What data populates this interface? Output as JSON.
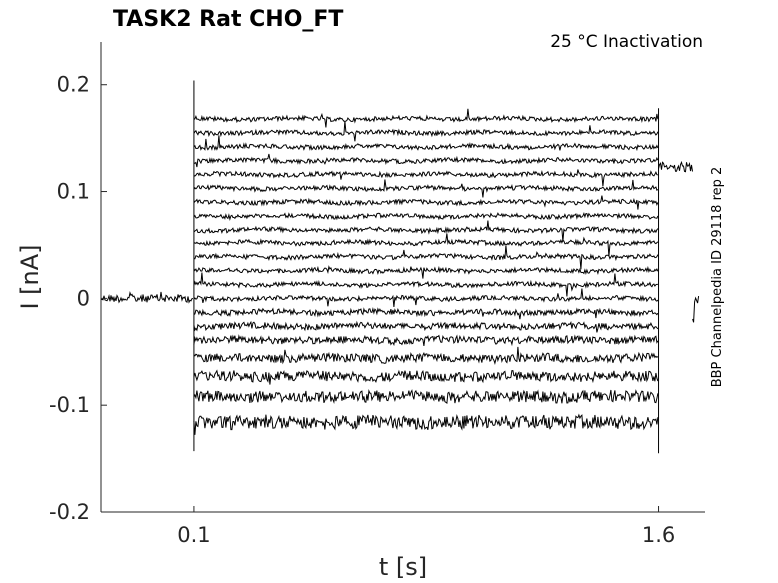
{
  "chart_data": {
    "type": "line",
    "title": "TASK2  Rat  CHO_FT",
    "annotation": "25 °C  Inactivation",
    "side_label": "BBP Channelpedia ID 29118 rep 2",
    "xlabel": "t [s]",
    "ylabel": "I [nA]",
    "xlim": [
      -0.2,
      1.75
    ],
    "ylim": [
      -0.2,
      0.24
    ],
    "xticks": [
      0.1,
      1.6
    ],
    "xtick_labels": [
      "0.1",
      "1.6"
    ],
    "yticks": [
      -0.2,
      -0.1,
      0,
      0.1,
      0.2
    ],
    "ytick_labels": [
      "-0.2",
      "-0.1",
      "0",
      "0.1",
      "0.2"
    ],
    "grid": false,
    "step_start_s": 0.1,
    "step_end_s": 1.6,
    "holding_current_nA": 0.0,
    "post_step_current_nA": 0.123,
    "series_step_levels_nA": [
      0.168,
      0.155,
      0.142,
      0.129,
      0.116,
      0.103,
      0.09,
      0.077,
      0.064,
      0.052,
      0.039,
      0.026,
      0.013,
      0.0,
      -0.013,
      -0.026,
      -0.039,
      -0.056,
      -0.073,
      -0.092,
      -0.116
    ]
  }
}
